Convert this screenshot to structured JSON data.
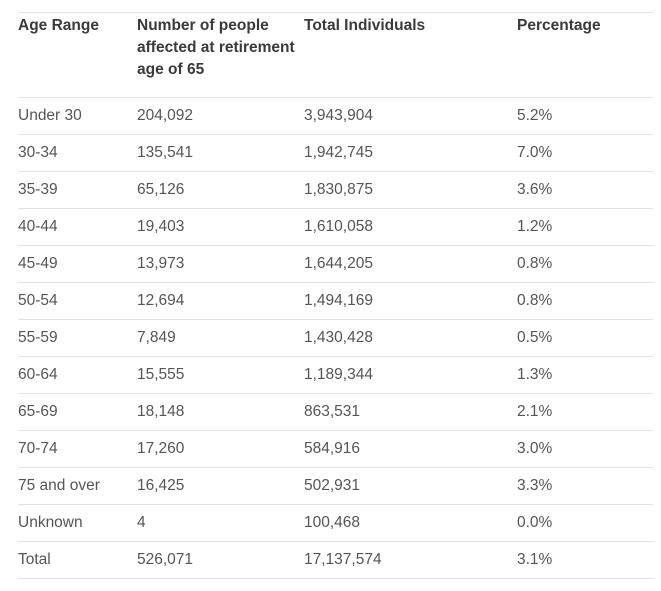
{
  "table": {
    "headers": [
      "Age Range",
      "Number of people affected at retirement age of 65",
      "Total Individuals",
      "Percentage"
    ],
    "rows": [
      [
        "Under 30",
        "204,092",
        "3,943,904",
        "5.2%"
      ],
      [
        "30-34",
        "135,541",
        "1,942,745",
        "7.0%"
      ],
      [
        "35-39",
        "65,126",
        "1,830,875",
        "3.6%"
      ],
      [
        "40-44",
        "19,403",
        "1,610,058",
        "1.2%"
      ],
      [
        "45-49",
        "13,973",
        "1,644,205",
        "0.8%"
      ],
      [
        "50-54",
        "12,694",
        "1,494,169",
        "0.8%"
      ],
      [
        "55-59",
        "7,849",
        "1,430,428",
        "0.5%"
      ],
      [
        "60-64",
        "15,555",
        "1,189,344",
        "1.3%"
      ],
      [
        "65-69",
        "18,148",
        "863,531",
        "2.1%"
      ],
      [
        "70-74",
        "17,260",
        "584,916",
        "3.0%"
      ],
      [
        "75 and over",
        "16,425",
        "502,931",
        "3.3%"
      ],
      [
        "Unknown",
        "4",
        "100,468",
        "0.0%"
      ],
      [
        "Total",
        "526,071",
        "17,137,574",
        "3.1%"
      ]
    ]
  }
}
